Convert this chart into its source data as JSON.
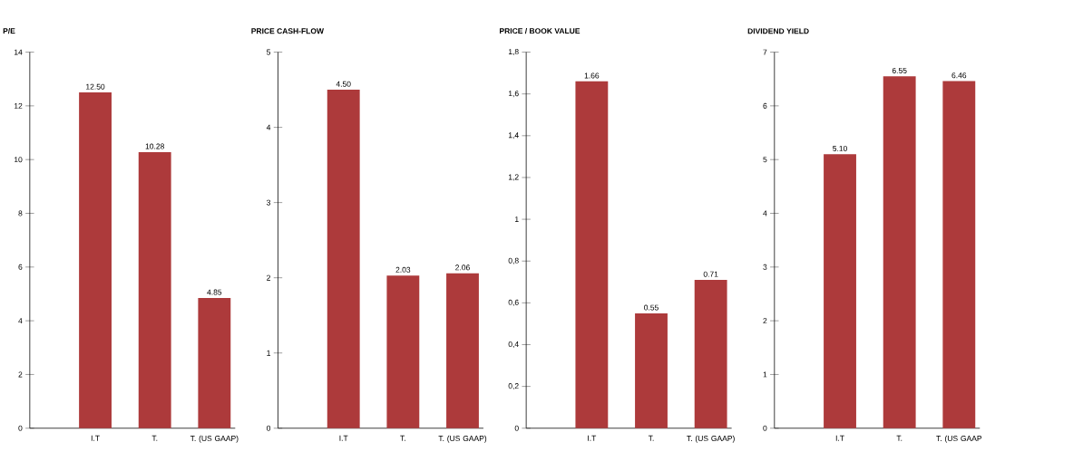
{
  "chart_data": [
    {
      "type": "bar",
      "title": "P/E",
      "categories": [
        "I.T",
        "T.",
        "T. (US GAAP)"
      ],
      "values": [
        12.5,
        10.28,
        4.85
      ],
      "value_labels": [
        "12.50",
        "10.28",
        "4.85"
      ],
      "color": "#ad3a3b",
      "ylim": [
        0,
        14
      ],
      "yticks": [
        0,
        2,
        4,
        6,
        8,
        10,
        12,
        14
      ]
    },
    {
      "type": "bar",
      "title": "PRICE CASH-FLOW",
      "categories": [
        "I.T",
        "T.",
        "T. (US GAAP)"
      ],
      "values": [
        4.5,
        2.03,
        2.06
      ],
      "value_labels": [
        "4.50",
        "2.03",
        "2.06"
      ],
      "color": "#ad3a3b",
      "ylim": [
        0,
        5
      ],
      "yticks": [
        0,
        1,
        2,
        3,
        4,
        5
      ]
    },
    {
      "type": "bar",
      "title": "PRICE / BOOK VALUE",
      "categories": [
        "I.T",
        "T.",
        "T. (US GAAP)"
      ],
      "values": [
        1.66,
        0.55,
        0.71
      ],
      "value_labels": [
        "1.66",
        "0.55",
        "0.71"
      ],
      "color": "#ad3a3b",
      "ylim": [
        0,
        1.8
      ],
      "yticks": [
        0,
        {
          "value": 0.2,
          "label": "0,2"
        },
        {
          "value": 0.4,
          "label": "0,4"
        },
        {
          "value": 0.6,
          "label": "0,6"
        },
        {
          "value": 0.8,
          "label": "0,8"
        },
        1,
        {
          "value": 1.2,
          "label": "1,2"
        },
        {
          "value": 1.4,
          "label": "1,4"
        },
        {
          "value": 1.6,
          "label": "1,6"
        },
        {
          "value": 1.8,
          "label": "1,8"
        }
      ]
    },
    {
      "type": "bar",
      "title": "DIVIDEND YIELD",
      "categories": [
        "I.T",
        "T.",
        "T. (US GAAP"
      ],
      "values": [
        5.1,
        6.55,
        6.46
      ],
      "value_labels": [
        "5.10",
        "6.55",
        "6.46"
      ],
      "color": "#ad3a3b",
      "ylim": [
        0,
        7
      ],
      "yticks": [
        0,
        1,
        2,
        3,
        4,
        5,
        6,
        7
      ]
    }
  ]
}
